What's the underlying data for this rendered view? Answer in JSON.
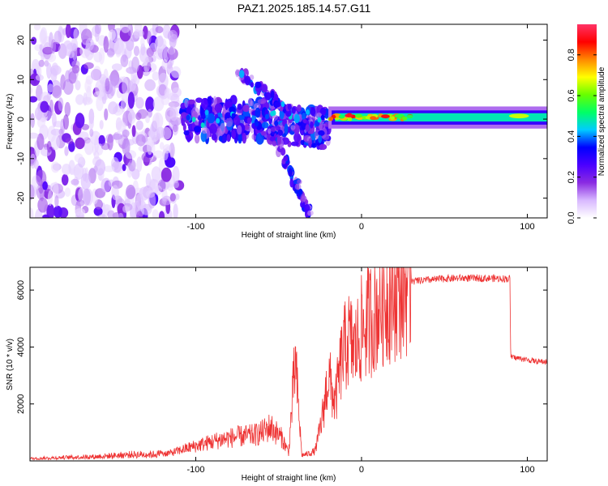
{
  "title": "PAZ1.2025.185.14.57.G11",
  "chart_data": [
    {
      "type": "heatmap",
      "xlabel": "Height of straight line (km)",
      "ylabel": "Frequency (Hz)",
      "xlim": [
        -200,
        112
      ],
      "ylim": [
        -25,
        24
      ],
      "xticks": [
        -100,
        0,
        100
      ],
      "xtick_labels": [
        "-100",
        "0",
        "100"
      ],
      "yticks": [
        -20,
        -10,
        0,
        10,
        20
      ],
      "ytick_labels": [
        "-20",
        "-10",
        "0",
        "10",
        "20"
      ],
      "colorbar": {
        "label": "Normalized spectral amplitude",
        "range": [
          0,
          0.95
        ],
        "ticks": [
          0.0,
          0.2,
          0.4,
          0.6,
          0.8
        ],
        "tick_labels": [
          "0.0",
          "0.2",
          "0.4",
          "0.6",
          "0.8"
        ],
        "colormap": [
          "#ffffff",
          "#d8b8ff",
          "#8a2be2",
          "#4b00ff",
          "#0000ff",
          "#00ccff",
          "#00ff66",
          "#66ff00",
          "#ffff00",
          "#ff8800",
          "#ff0000",
          "#ff3366"
        ]
      },
      "features": [
        {
          "name": "noise",
          "x_range": [
            -200,
            -110
          ],
          "y_range": [
            -25,
            24
          ],
          "level": 0.12
        },
        {
          "name": "main_band",
          "x_range": [
            -108,
            -20
          ],
          "y_center": 0,
          "y_width": 5,
          "level": 0.3
        },
        {
          "name": "branch_upper",
          "from": [
            -75,
            12
          ],
          "to": [
            -30,
            -2
          ],
          "level": 0.35
        },
        {
          "name": "branch_lower",
          "from": [
            -55,
            -2
          ],
          "to": [
            -30,
            -25
          ],
          "level": 0.3
        },
        {
          "name": "strong_tone",
          "x_range": [
            -20,
            112
          ],
          "y_center": 0.5,
          "level": 0.55
        }
      ]
    },
    {
      "type": "line",
      "xlabel": "Height of straight line (km)",
      "ylabel": "SNR (10 * v/v)",
      "xlim": [
        -200,
        112
      ],
      "ylim": [
        0,
        6800
      ],
      "xticks": [
        -100,
        0,
        100
      ],
      "xtick_labels": [
        "-100",
        "0",
        "100"
      ],
      "yticks": [
        2000,
        4000,
        6000
      ],
      "ytick_labels": [
        "2000",
        "4000",
        "6000"
      ],
      "color": "#ee3333",
      "x": [
        -200,
        -180,
        -160,
        -140,
        -125,
        -115,
        -105,
        -95,
        -85,
        -75,
        -65,
        -60,
        -55,
        -48,
        -44,
        -40,
        -36,
        -32,
        -28,
        -24,
        -20,
        -16,
        -12,
        -8,
        -4,
        0,
        4,
        8,
        12,
        16,
        20,
        25,
        30,
        40,
        50,
        60,
        70,
        80,
        88,
        89.5,
        90,
        95,
        100,
        105,
        112
      ],
      "values": [
        80,
        120,
        150,
        220,
        230,
        280,
        450,
        600,
        750,
        850,
        900,
        1000,
        1200,
        800,
        300,
        3500,
        200,
        250,
        350,
        1400,
        3000,
        2000,
        3600,
        4300,
        3900,
        4600,
        4900,
        5200,
        5600,
        5800,
        6000,
        6200,
        6300,
        6350,
        6400,
        6420,
        6420,
        6410,
        6400,
        6400,
        3650,
        3600,
        3550,
        3500,
        3480
      ]
    }
  ]
}
